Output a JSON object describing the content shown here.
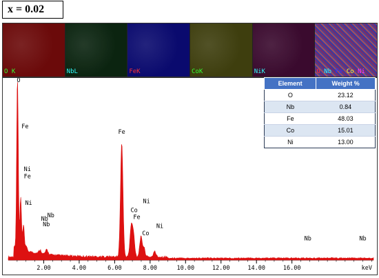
{
  "label": {
    "x_value": "x = 0.02"
  },
  "maps": [
    {
      "label": "O K",
      "label_color": "#33ff33",
      "bg_color": "#6b0a0a"
    },
    {
      "label": "NbL",
      "label_color": "#33ffff",
      "bg_color": "#0b2410"
    },
    {
      "label": "FeK",
      "label_color": "#ff3333",
      "bg_color": "#0a0a6e"
    },
    {
      "label": "CoK",
      "label_color": "#33ff33",
      "bg_color": "#3e3e0e"
    },
    {
      "label": "NiK",
      "label_color": "#33ffff",
      "bg_color": "#3a0a2e"
    },
    {
      "label": "",
      "label_color": "#ffffff",
      "bg_color": "#7a4a7a",
      "legend": [
        {
          "text": "O",
          "color": "#ff3333"
        },
        {
          "text": "Nb",
          "color": "#33ffff"
        },
        {
          "text": "Fe",
          "color": "#3333ff"
        },
        {
          "text": "Co",
          "color": "#ffff33"
        },
        {
          "text": "Ni",
          "color": "#ff33ff"
        }
      ]
    }
  ],
  "table": {
    "headers": [
      "Element",
      "Weight %"
    ],
    "rows": [
      [
        "O",
        "23.12"
      ],
      [
        "Nb",
        "0.84"
      ],
      [
        "Fe",
        "48.03"
      ],
      [
        "Co",
        "15.01"
      ],
      [
        "Ni",
        "13.00"
      ]
    ]
  },
  "chart_data": {
    "type": "line",
    "xlabel": "keV",
    "xlim": [
      0,
      20.6
    ],
    "ylim": [
      0,
      1
    ],
    "x_ticks": [
      "2.00",
      "4.00",
      "6.00",
      "8.00",
      "10.00",
      "12.00",
      "14.00",
      "16.00"
    ],
    "fill_color": "#dd1111",
    "peaks": [
      {
        "x": 0.52,
        "y": 0.98
      },
      {
        "x": 0.7,
        "y": 0.29
      },
      {
        "x": 0.86,
        "y": 0.14
      },
      {
        "x": 1.0,
        "y": 0.03
      },
      {
        "x": 1.8,
        "y": 0.02
      },
      {
        "x": 2.17,
        "y": 0.025
      },
      {
        "x": 6.4,
        "y": 0.64
      },
      {
        "x": 6.93,
        "y": 0.16
      },
      {
        "x": 7.06,
        "y": 0.12
      },
      {
        "x": 7.48,
        "y": 0.11
      },
      {
        "x": 7.65,
        "y": 0.05
      },
      {
        "x": 8.26,
        "y": 0.03
      }
    ],
    "annotations": [
      {
        "text": "O",
        "x": 0.48,
        "y": 1.0
      },
      {
        "text": "Fe",
        "x": 0.75,
        "y": 0.74
      },
      {
        "text": "Ni",
        "x": 0.88,
        "y": 0.5
      },
      {
        "text": "Fe",
        "x": 0.88,
        "y": 0.46
      },
      {
        "text": "Ni",
        "x": 0.95,
        "y": 0.31
      },
      {
        "text": "Nb",
        "x": 2.2,
        "y": 0.24
      },
      {
        "text": "Nb",
        "x": 1.85,
        "y": 0.22
      },
      {
        "text": "Nb",
        "x": 1.95,
        "y": 0.19
      },
      {
        "text": "Fe",
        "x": 6.2,
        "y": 0.71
      },
      {
        "text": "Co",
        "x": 6.9,
        "y": 0.27
      },
      {
        "text": "Ni",
        "x": 7.6,
        "y": 0.32
      },
      {
        "text": "Fe",
        "x": 7.05,
        "y": 0.23
      },
      {
        "text": "Co",
        "x": 7.55,
        "y": 0.14
      },
      {
        "text": "Ni",
        "x": 8.35,
        "y": 0.18
      },
      {
        "text": "Nb",
        "x": 16.7,
        "y": 0.11
      },
      {
        "text": "Nb",
        "x": 19.8,
        "y": 0.11
      }
    ]
  }
}
